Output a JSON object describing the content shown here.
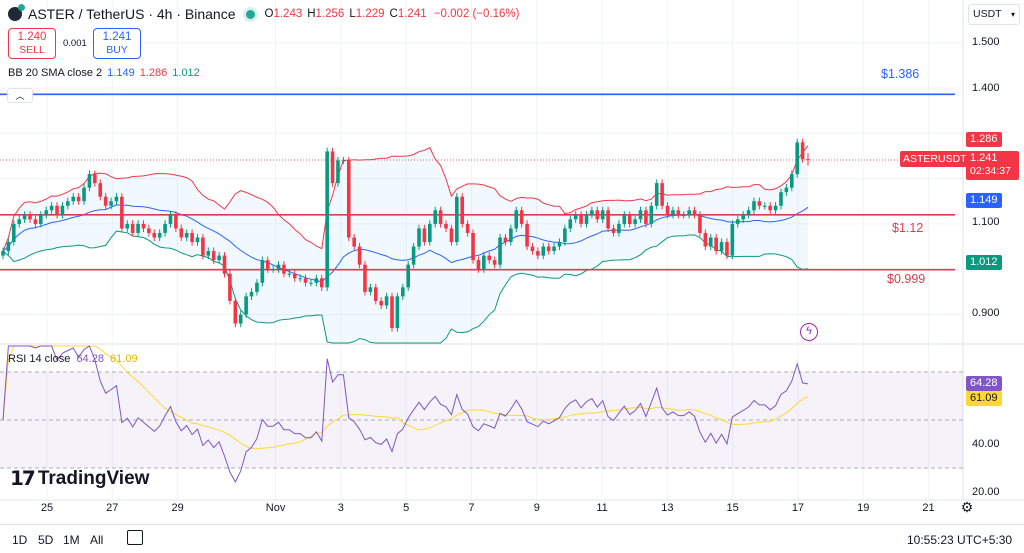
{
  "header": {
    "symbol": "ASTER / TetherUS · 4h · Binance",
    "open_label": "O",
    "open": "1.243",
    "high_label": "H",
    "high": "1.256",
    "low_label": "L",
    "low": "1.229",
    "close_label": "C",
    "close": "1.241",
    "change": "−0.002 (−0.16%)"
  },
  "trade": {
    "sell_price": "1.240",
    "sell_label": "SELL",
    "spread": "0.001",
    "buy_price": "1.241",
    "buy_label": "BUY"
  },
  "bb_legend": {
    "label": "BB 20 SMA close 2",
    "basis": "1.149",
    "upper": "1.286",
    "lower": "1.012"
  },
  "rsi_legend": {
    "label": "RSI 14 close",
    "rsi": "64.28",
    "ma": "61.09"
  },
  "currency": "USDT",
  "price_axis": [
    "1.500",
    "1.400",
    "1.100",
    "0.900"
  ],
  "rsi_axis": [
    "40.00",
    "20.00"
  ],
  "badges": {
    "upper": "1.286",
    "symbol": "ASTERUSDT",
    "last": "1.241",
    "countdown": "02:34:37",
    "basis": "1.149",
    "lower": "1.012",
    "rsi": "64.28",
    "rsi_ma": "61.09"
  },
  "levels": [
    {
      "label": "$1.386",
      "value": 1.386,
      "color": "#2962ff"
    },
    {
      "label": "$1.12",
      "value": 1.12,
      "color": "#e03a4e"
    },
    {
      "label": "$0.999",
      "value": 0.999,
      "color": "#e03a4e"
    }
  ],
  "brand": "TradingView",
  "time_axis": [
    "25",
    "27",
    "29",
    "Nov",
    "3",
    "5",
    "7",
    "9",
    "11",
    "13",
    "15",
    "17",
    "19",
    "21"
  ],
  "ranges": [
    "1D",
    "5D",
    "1M",
    "All"
  ],
  "clock": "10:55:23 UTC+5:30",
  "colors": {
    "up": "#089981",
    "down": "#f23645",
    "bb_basis": "#2962ff",
    "bb_upper": "#f23645",
    "bb_lower": "#089981",
    "rsi": "#7e57c2",
    "rsi_ma": "#fdd835"
  },
  "chart_data": {
    "type": "candlestick",
    "interval": "4h",
    "ylim": [
      0.83,
      1.55
    ],
    "rsi_ylim": [
      15,
      85
    ],
    "rsi_bands": [
      70,
      50,
      30
    ],
    "last_candle": {
      "open": 1.243,
      "high": 1.256,
      "low": 1.229,
      "close": 1.241
    },
    "closes": [
      1.04,
      1.06,
      1.1,
      1.11,
      1.12,
      1.11,
      1.1,
      1.12,
      1.13,
      1.14,
      1.12,
      1.14,
      1.15,
      1.16,
      1.15,
      1.18,
      1.21,
      1.19,
      1.16,
      1.14,
      1.15,
      1.16,
      1.09,
      1.1,
      1.08,
      1.1,
      1.09,
      1.08,
      1.07,
      1.08,
      1.1,
      1.12,
      1.09,
      1.07,
      1.08,
      1.06,
      1.07,
      1.03,
      1.04,
      1.02,
      1.03,
      0.99,
      0.93,
      0.88,
      0.9,
      0.94,
      0.95,
      0.97,
      1.02,
      1.0,
      1.0,
      1.01,
      0.99,
      0.99,
      0.98,
      0.98,
      0.97,
      0.97,
      0.98,
      0.96,
      1.26,
      1.19,
      1.24,
      1.24,
      1.07,
      1.05,
      1.01,
      0.95,
      0.96,
      0.93,
      0.92,
      0.94,
      0.87,
      0.94,
      0.96,
      1.01,
      1.05,
      1.09,
      1.06,
      1.1,
      1.13,
      1.1,
      1.09,
      1.06,
      1.16,
      1.1,
      1.08,
      1.02,
      1.0,
      1.03,
      1.02,
      1.01,
      1.07,
      1.06,
      1.09,
      1.13,
      1.1,
      1.05,
      1.04,
      1.03,
      1.05,
      1.04,
      1.05,
      1.06,
      1.09,
      1.11,
      1.12,
      1.1,
      1.12,
      1.13,
      1.11,
      1.13,
      1.09,
      1.08,
      1.1,
      1.12,
      1.1,
      1.11,
      1.13,
      1.1,
      1.14,
      1.19,
      1.14,
      1.12,
      1.13,
      1.12,
      1.12,
      1.13,
      1.12,
      1.08,
      1.05,
      1.07,
      1.04,
      1.06,
      1.03,
      1.1,
      1.11,
      1.12,
      1.13,
      1.15,
      1.14,
      1.14,
      1.13,
      1.14,
      1.17,
      1.18,
      1.21,
      1.28,
      1.243,
      1.241
    ]
  }
}
